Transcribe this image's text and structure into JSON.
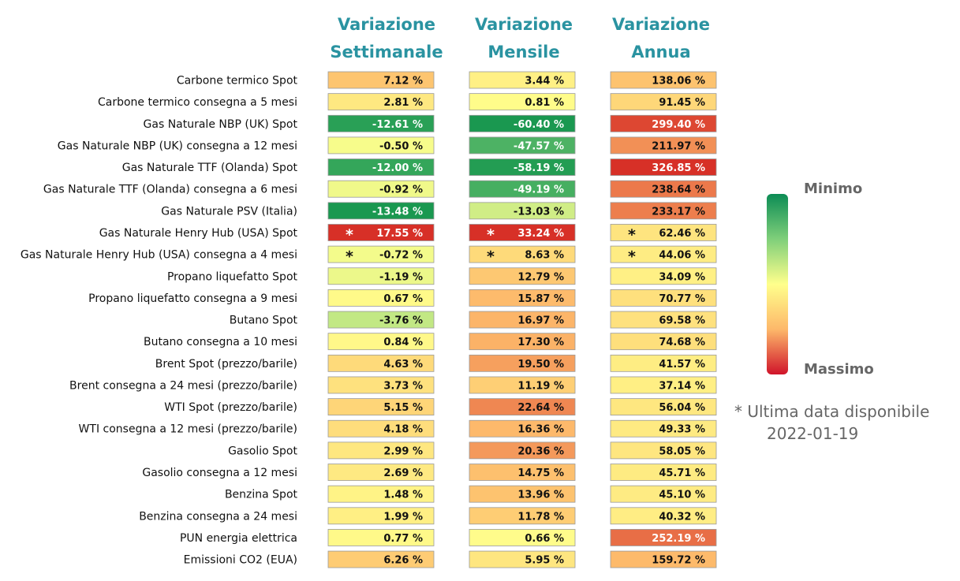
{
  "chart_data": {
    "type": "heatmap",
    "columns": [
      {
        "line1": "Variazione",
        "line2": "Settimanale"
      },
      {
        "line1": "Variazione",
        "line2": "Mensile"
      },
      {
        "line1": "Variazione",
        "line2": "Annua"
      }
    ],
    "rows": [
      {
        "label": "Carbone termico Spot",
        "values": [
          7.12,
          3.44,
          138.06
        ],
        "stars": [
          false,
          false,
          false
        ]
      },
      {
        "label": "Carbone termico consegna a 5 mesi",
        "values": [
          2.81,
          0.81,
          91.45
        ],
        "stars": [
          false,
          false,
          false
        ]
      },
      {
        "label": "Gas Naturale NBP (UK) Spot",
        "values": [
          -12.61,
          -60.4,
          299.4
        ],
        "stars": [
          false,
          false,
          false
        ]
      },
      {
        "label": "Gas Naturale NBP (UK) consegna a 12 mesi",
        "values": [
          -0.5,
          -47.57,
          211.97
        ],
        "stars": [
          false,
          false,
          false
        ]
      },
      {
        "label": "Gas Naturale TTF (Olanda) Spot",
        "values": [
          -12.0,
          -58.19,
          326.85
        ],
        "stars": [
          false,
          false,
          false
        ]
      },
      {
        "label": "Gas Naturale TTF (Olanda) consegna a 6 mesi",
        "values": [
          -0.92,
          -49.19,
          238.64
        ],
        "stars": [
          false,
          false,
          false
        ]
      },
      {
        "label": "Gas Naturale PSV (Italia)",
        "values": [
          -13.48,
          -13.03,
          233.17
        ],
        "stars": [
          false,
          false,
          false
        ]
      },
      {
        "label": "Gas Naturale Henry Hub (USA) Spot",
        "values": [
          17.55,
          33.24,
          62.46
        ],
        "stars": [
          true,
          true,
          true
        ]
      },
      {
        "label": "Gas Naturale Henry Hub (USA) consegna a 4 mesi",
        "values": [
          -0.72,
          8.63,
          44.06
        ],
        "stars": [
          true,
          true,
          true
        ]
      },
      {
        "label": "Propano liquefatto Spot",
        "values": [
          -1.19,
          12.79,
          34.09
        ],
        "stars": [
          false,
          false,
          false
        ]
      },
      {
        "label": "Propano liquefatto consegna a 9 mesi",
        "values": [
          0.67,
          15.87,
          70.77
        ],
        "stars": [
          false,
          false,
          false
        ]
      },
      {
        "label": "Butano Spot",
        "values": [
          -3.76,
          16.97,
          69.58
        ],
        "stars": [
          false,
          false,
          false
        ]
      },
      {
        "label": "Butano consegna a 10 mesi",
        "values": [
          0.84,
          17.3,
          74.68
        ],
        "stars": [
          false,
          false,
          false
        ]
      },
      {
        "label": "Brent Spot (prezzo/barile)",
        "values": [
          4.63,
          19.5,
          41.57
        ],
        "stars": [
          false,
          false,
          false
        ]
      },
      {
        "label": "Brent consegna a 24 mesi (prezzo/barile)",
        "values": [
          3.73,
          11.19,
          37.14
        ],
        "stars": [
          false,
          false,
          false
        ]
      },
      {
        "label": "WTI Spot (prezzo/barile)",
        "values": [
          5.15,
          22.64,
          56.04
        ],
        "stars": [
          false,
          false,
          false
        ]
      },
      {
        "label": "WTI consegna a 12 mesi (prezzo/barile)",
        "values": [
          4.18,
          16.36,
          49.33
        ],
        "stars": [
          false,
          false,
          false
        ]
      },
      {
        "label": "Gasolio Spot",
        "values": [
          2.99,
          20.36,
          58.05
        ],
        "stars": [
          false,
          false,
          false
        ]
      },
      {
        "label": "Gasolio consegna a 12 mesi",
        "values": [
          2.69,
          14.75,
          45.71
        ],
        "stars": [
          false,
          false,
          false
        ]
      },
      {
        "label": "Benzina Spot",
        "values": [
          1.48,
          13.96,
          45.1
        ],
        "stars": [
          false,
          false,
          false
        ]
      },
      {
        "label": "Benzina consegna a 24 mesi",
        "values": [
          1.99,
          11.78,
          40.32
        ],
        "stars": [
          false,
          false,
          false
        ]
      },
      {
        "label": "PUN energia elettrica",
        "values": [
          0.77,
          0.66,
          252.19
        ],
        "stars": [
          false,
          false,
          false
        ]
      },
      {
        "label": "Emissioni CO2 (EUA)",
        "values": [
          6.26,
          5.95,
          159.72
        ],
        "stars": [
          false,
          false,
          false
        ]
      }
    ],
    "value_suffix": " %",
    "star_symbol": "*",
    "legend": {
      "min_label": "Minimo",
      "max_label": "Massimo"
    },
    "colors": {
      "min": "#1a9850",
      "mid": "#ffff8c",
      "max": "#d73027"
    }
  },
  "footnote": {
    "line1": "* Ultima data disponibile",
    "line2": "2022-01-19"
  }
}
